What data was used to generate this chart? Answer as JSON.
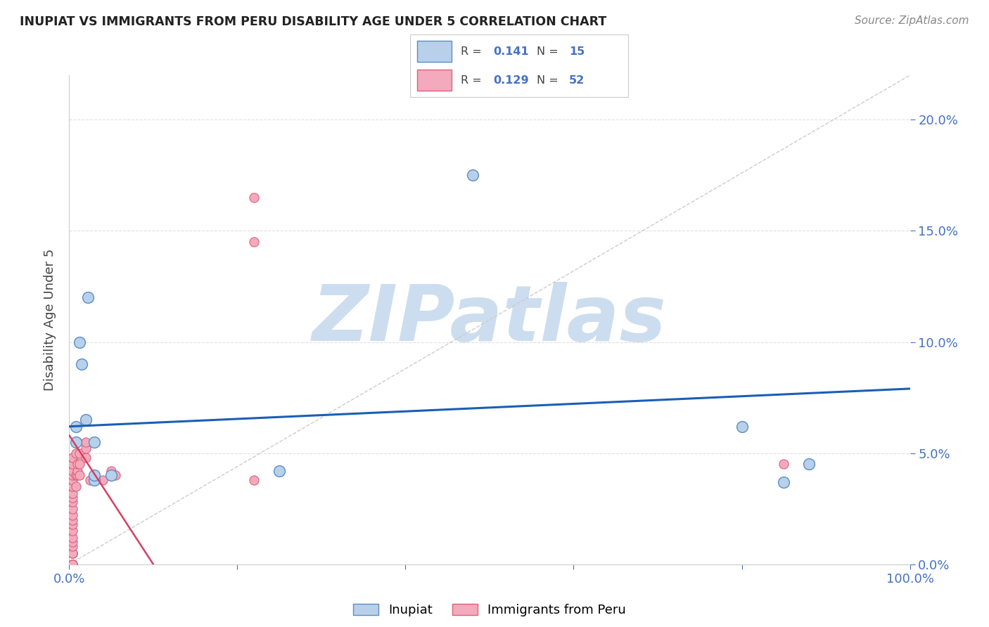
{
  "title": "INUPIAT VS IMMIGRANTS FROM PERU DISABILITY AGE UNDER 5 CORRELATION CHART",
  "source": "Source: ZipAtlas.com",
  "ylabel": "Disability Age Under 5",
  "xlim": [
    0,
    1.0
  ],
  "ylim": [
    0,
    0.22
  ],
  "yticks_right": [
    0.0,
    0.05,
    0.1,
    0.15,
    0.2
  ],
  "ytick_labels_right": [
    "0.0%",
    "5.0%",
    "10.0%",
    "15.0%",
    "20.0%"
  ],
  "background_color": "#ffffff",
  "watermark": "ZIPatlas",
  "watermark_color": "#ccddef",
  "inupiat_color": "#b8d0ea",
  "peru_color": "#f2aabc",
  "inupiat_edge_color": "#5b8ec4",
  "peru_edge_color": "#e0607a",
  "trend_inupiat_color": "#1a5fb4",
  "trend_peru_color": "#d44060",
  "diagonal_color": "#cccccc",
  "R_inupiat": 0.141,
  "N_inupiat": 15,
  "R_peru": 0.129,
  "N_peru": 52,
  "inupiat_x": [
    0.008,
    0.008,
    0.012,
    0.015,
    0.022,
    0.03,
    0.03,
    0.05,
    0.25,
    0.48,
    0.8,
    0.85,
    0.88,
    0.03,
    0.02
  ],
  "inupiat_y": [
    0.062,
    0.055,
    0.1,
    0.09,
    0.12,
    0.055,
    0.038,
    0.04,
    0.042,
    0.175,
    0.062,
    0.037,
    0.045,
    0.04,
    0.065
  ],
  "peru_x": [
    0.004,
    0.004,
    0.004,
    0.004,
    0.004,
    0.004,
    0.004,
    0.004,
    0.004,
    0.004,
    0.004,
    0.004,
    0.004,
    0.004,
    0.004,
    0.004,
    0.004,
    0.004,
    0.004,
    0.004,
    0.004,
    0.004,
    0.004,
    0.004,
    0.004,
    0.004,
    0.004,
    0.004,
    0.004,
    0.004,
    0.008,
    0.008,
    0.008,
    0.01,
    0.01,
    0.01,
    0.01,
    0.012,
    0.012,
    0.012,
    0.02,
    0.02,
    0.02,
    0.025,
    0.03,
    0.04,
    0.05,
    0.055,
    0.22,
    0.22,
    0.22,
    0.85
  ],
  "peru_y": [
    0.0,
    0.0,
    0.0,
    0.0,
    0.0,
    0.0,
    0.0,
    0.0,
    0.0,
    0.005,
    0.005,
    0.005,
    0.005,
    0.008,
    0.01,
    0.012,
    0.015,
    0.018,
    0.02,
    0.022,
    0.025,
    0.028,
    0.03,
    0.032,
    0.035,
    0.038,
    0.04,
    0.042,
    0.045,
    0.048,
    0.035,
    0.04,
    0.05,
    0.04,
    0.042,
    0.045,
    0.055,
    0.04,
    0.045,
    0.05,
    0.048,
    0.052,
    0.055,
    0.038,
    0.04,
    0.038,
    0.042,
    0.04,
    0.145,
    0.165,
    0.038,
    0.045
  ],
  "trend_inupiat_x0": 0.0,
  "trend_inupiat_y0": 0.062,
  "trend_inupiat_x1": 1.0,
  "trend_inupiat_y1": 0.079,
  "trend_peru_x0": 0.0,
  "trend_peru_y0": 0.058,
  "trend_peru_x1": 0.14,
  "trend_peru_y1": 0.0,
  "legend_label_inupiat": "Inupiat",
  "legend_label_peru": "Immigrants from Peru"
}
